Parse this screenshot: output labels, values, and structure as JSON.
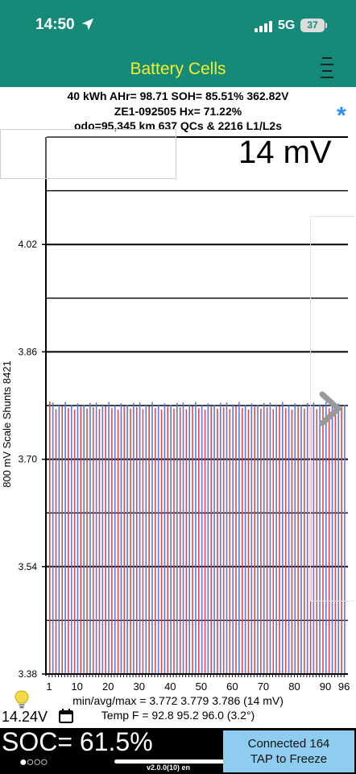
{
  "status_bar": {
    "time": "14:50",
    "network": "5G",
    "battery": "37"
  },
  "app": {
    "title": "Battery Cells"
  },
  "header": {
    "line1": "40 kWh  AHr= 98.71  SOH= 85.51%   362.82V",
    "line2": "ZE1-092505   Hx= 71.22%",
    "line3": "odo=95,345 km 637 QCs & 2216 L1/L2s",
    "asterisk": "*"
  },
  "mv_spread": "14 mV",
  "y_axis_label": "800 mV Scale   Shunts 8421",
  "chart_data": {
    "type": "bar",
    "ylim": [
      3.38,
      4.18
    ],
    "y_ticks": [
      "4.02",
      "3.86",
      "3.70",
      "3.54",
      "3.38"
    ],
    "x_ticks": [
      "1",
      "10",
      "20",
      "30",
      "40",
      "50",
      "60",
      "70",
      "80",
      "90",
      "96"
    ],
    "cell_count": 96,
    "min": 3.772,
    "avg": 3.779,
    "max": 3.786,
    "series_colors": [
      "#e0484e",
      "#5a78ec"
    ]
  },
  "stats": {
    "voltage_line": "min/avg/max = 3.772 3.779 3.786  (14 mV)",
    "temp_line": "Temp F = 92.8  95.2  96.0  (3.2°)"
  },
  "aux_voltage": "14.24V",
  "soc": "SOC= 61.5%",
  "page_dots": "●○○○",
  "version": "v2.0.0(10) en",
  "connected": {
    "line1": "Connected 164",
    "line2": "TAP to Freeze"
  }
}
